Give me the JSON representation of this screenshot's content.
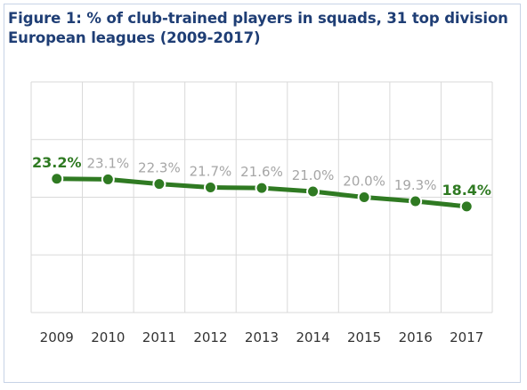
{
  "title": "Figure 1: % of club-trained players in squads, 31 top division European leagues (2009-2017)",
  "chart_data": {
    "type": "line",
    "title": "Figure 1: % of club-trained players in squads, 31 top division European leagues (2009-2017)",
    "xlabel": "",
    "ylabel": "",
    "categories": [
      "2009",
      "2010",
      "2011",
      "2012",
      "2013",
      "2014",
      "2015",
      "2016",
      "2017"
    ],
    "series": [
      {
        "values": [
          23.2,
          23.1,
          22.3,
          21.7,
          21.6,
          21.0,
          20.0,
          19.3,
          18.4
        ],
        "labels": [
          "23.2%",
          "23.1%",
          "22.3%",
          "21.7%",
          "21.6%",
          "21.0%",
          "20.0%",
          "19.3%",
          "18.4%"
        ],
        "highlighted": [
          true,
          false,
          false,
          false,
          false,
          false,
          false,
          false,
          true
        ]
      }
    ],
    "ylim": [
      0,
      40
    ],
    "grid": true,
    "legend": "none",
    "colors": {
      "line": "#2f7a22",
      "marker": "#2f7a22",
      "label_default": "#a6a6a6",
      "label_highlight": "#2f7a22",
      "grid": "#d9d9d9",
      "title": "#1f3e75"
    }
  }
}
